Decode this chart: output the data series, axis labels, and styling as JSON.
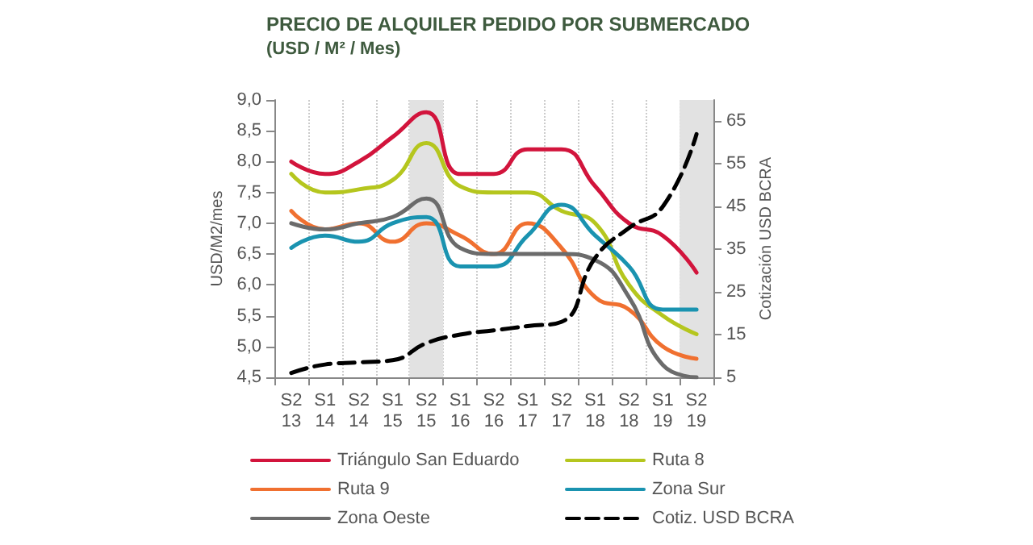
{
  "chart_data": {
    "type": "line",
    "title": "PRECIO DE ALQUILER PEDIDO POR SUBMERCADO",
    "subtitle": "(USD / M² / Mes)",
    "ylabel": "USD/M2/mes",
    "y2label": "Cotización USD BCRA",
    "categories": [
      "S2\n13",
      "S1\n14",
      "S2\n14",
      "S1\n15",
      "S2\n15",
      "S1\n16",
      "S2\n16",
      "S1\n17",
      "S2\n17",
      "S1\n18",
      "S2\n18",
      "S1\n19",
      "S2\n19"
    ],
    "series": [
      {
        "name": "Triángulo San Eduardo",
        "color": "#d2143c",
        "values": [
          8.0,
          7.8,
          8.0,
          8.4,
          8.8,
          7.8,
          7.8,
          8.2,
          8.2,
          7.6,
          7.0,
          6.8,
          6.2
        ]
      },
      {
        "name": "Ruta 8",
        "color": "#b5c61e",
        "values": [
          7.8,
          7.5,
          7.55,
          7.7,
          8.3,
          7.6,
          7.5,
          7.5,
          7.2,
          7.0,
          6.0,
          5.5,
          5.2
        ]
      },
      {
        "name": "Ruta 9",
        "color": "#f07030",
        "values": [
          7.2,
          6.9,
          7.0,
          6.7,
          7.0,
          6.8,
          6.5,
          7.0,
          6.6,
          5.8,
          5.6,
          5.0,
          4.8
        ]
      },
      {
        "name": "Zona Sur",
        "color": "#1a93b0",
        "values": [
          6.6,
          6.8,
          6.7,
          7.0,
          7.1,
          6.3,
          6.3,
          6.8,
          7.3,
          6.8,
          6.3,
          5.6,
          5.6
        ]
      },
      {
        "name": "Zona Oeste",
        "color": "#6b6b6b",
        "values": [
          7.0,
          6.9,
          7.0,
          7.1,
          7.4,
          6.6,
          6.5,
          6.5,
          6.5,
          6.4,
          5.8,
          4.7,
          4.5
        ]
      },
      {
        "name": "Cotiz. USD BCRA",
        "color": "#000000",
        "axis": "y2",
        "line_style": "dashed",
        "values": [
          6,
          8,
          8.5,
          9,
          13,
          15,
          16,
          17,
          18,
          33,
          40,
          45,
          62
        ]
      }
    ],
    "ylim": [
      4.5,
      9.0
    ],
    "yticks": [
      {
        "value": 4.5,
        "label": "4,5"
      },
      {
        "value": 5.0,
        "label": "5,0"
      },
      {
        "value": 5.5,
        "label": "5,5"
      },
      {
        "value": 6.0,
        "label": "6,0"
      },
      {
        "value": 6.5,
        "label": "6,5"
      },
      {
        "value": 7.0,
        "label": "7,0"
      },
      {
        "value": 7.5,
        "label": "7,5"
      },
      {
        "value": 8.0,
        "label": "8,0"
      },
      {
        "value": 8.5,
        "label": "8,5"
      },
      {
        "value": 9.0,
        "label": "9,0"
      }
    ],
    "y2lim": [
      5,
      70
    ],
    "y2ticks": [
      5,
      15,
      25,
      35,
      45,
      55,
      65
    ],
    "bands": [
      {
        "axis": "x",
        "from": "S2\n15",
        "to": "S2\n15",
        "color": "#e2e2e2"
      },
      {
        "axis": "x",
        "from": "S2\n19",
        "to": "S2\n19",
        "color": "#e2e2e2"
      }
    ],
    "grid": "x",
    "legend": "bottom",
    "marker": "none",
    "line_style": "solid"
  }
}
